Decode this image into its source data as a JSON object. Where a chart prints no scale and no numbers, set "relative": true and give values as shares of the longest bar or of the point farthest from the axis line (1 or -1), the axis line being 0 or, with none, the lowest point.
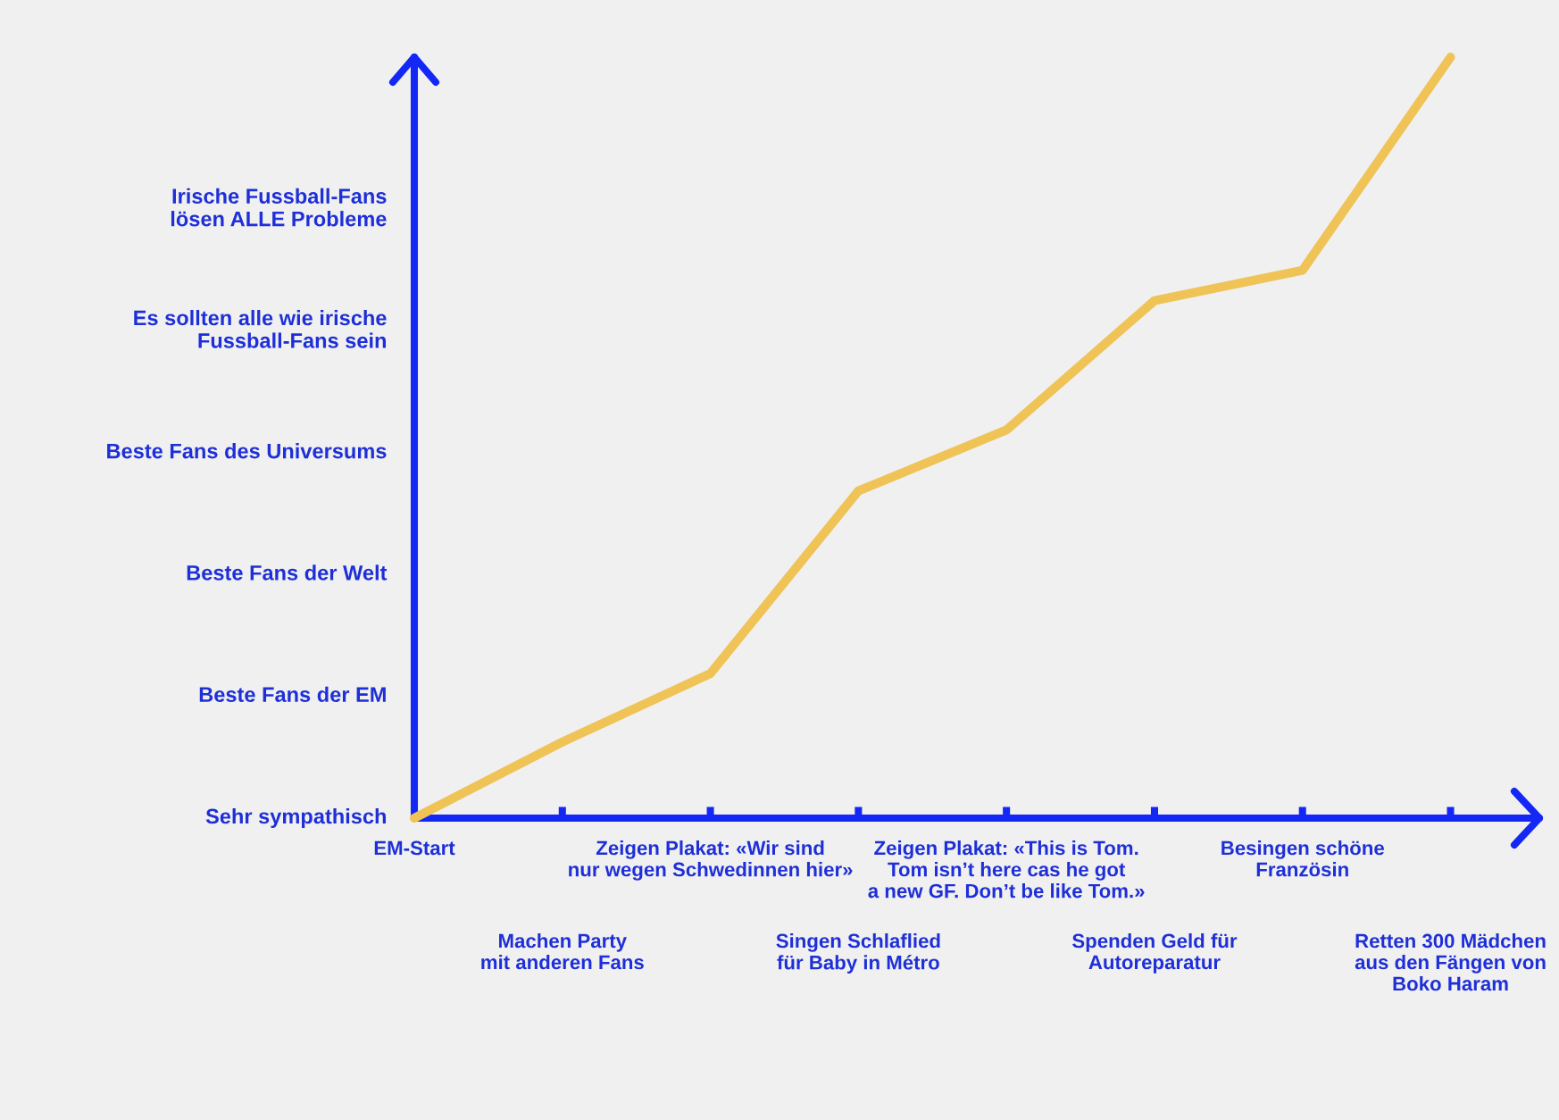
{
  "chart_data": {
    "type": "line",
    "relative": true,
    "categories": [
      "EM-Start",
      "Machen Party\nmit anderen Fans",
      "Zeigen Plakat: «Wir sind\nnur wegen Schwedinnen hier»",
      "Singen Schlaflied\nfür Baby in Métro",
      "Zeigen Plakat: «This is Tom.\nTom isn’t here cas he got\na new GF. Don’t be like Tom.»",
      "Spenden Geld für\nAutoreparatur",
      "Besingen schöne\nFranzösin",
      "Retten 300 Mädchen\naus den Fängen von\nBoko Haram"
    ],
    "series": [
      {
        "color": "#efc356",
        "values": [
          0,
          0.1,
          0.19,
          0.43,
          0.51,
          0.68,
          0.72,
          1
        ]
      }
    ],
    "annotations": [
      "Irische Fussball-Fans\nlösen ALLE Probleme",
      "Es sollten alle wie irische\nFussball-Fans sein",
      "Beste Fans des Universums",
      "Beste Fans der Welt",
      "Beste Fans der EM",
      "Sehr sympathisch"
    ]
  }
}
